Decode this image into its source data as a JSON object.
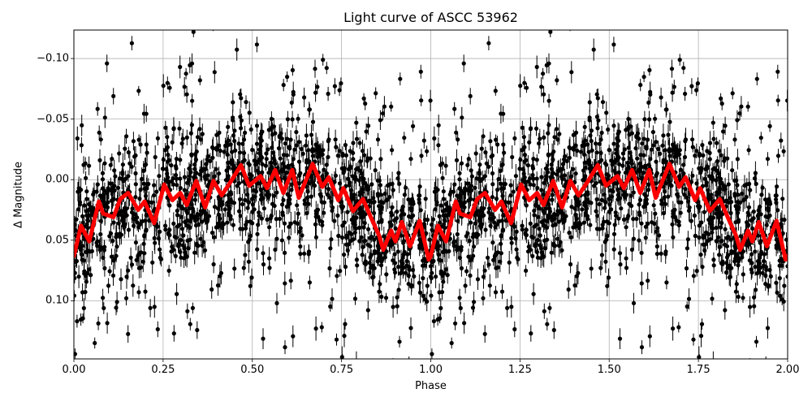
{
  "chart_data": {
    "type": "scatter",
    "title": "Light curve of ASCC 53962",
    "xlabel": "Phase",
    "ylabel": "Δ Magnitude",
    "xlim": [
      0.0,
      2.0
    ],
    "ylim": [
      0.148,
      -0.1235
    ],
    "y_inverted": true,
    "grid": true,
    "legend": null,
    "xticks": [
      "0.00",
      "0.25",
      "0.50",
      "0.75",
      "1.00",
      "1.25",
      "1.50",
      "1.75",
      "2.00"
    ],
    "yticks": [
      "−0.10",
      "−0.05",
      "0.00",
      "0.05",
      "0.10"
    ],
    "ytick_values": [
      -0.1,
      -0.05,
      0.0,
      0.05,
      0.1
    ],
    "xtick_values": [
      0.0,
      0.25,
      0.5,
      0.75,
      1.0,
      1.25,
      1.5,
      1.75,
      2.0
    ],
    "series": [
      {
        "name": "observations",
        "kind": "errorbar-scatter",
        "color": "#000000",
        "description": "Dense black points with vertical error bars, scatter spanning roughly -0.12 to +0.15 mag across phase 0-2, concentrated between -0.04 and +0.09",
        "scatter_center_approx": "follows model curve",
        "scatter_spread_mag": 0.06
      },
      {
        "name": "model",
        "kind": "line",
        "color": "#ff0000",
        "linewidth": 4,
        "period_in_phase": 1.0,
        "x": [
          0.0,
          0.02,
          0.043,
          0.07,
          0.082,
          0.111,
          0.13,
          0.152,
          0.18,
          0.198,
          0.225,
          0.253,
          0.276,
          0.298,
          0.316,
          0.343,
          0.368,
          0.391,
          0.414,
          0.441,
          0.468,
          0.491,
          0.523,
          0.541,
          0.564,
          0.587,
          0.612,
          0.63,
          0.669,
          0.696,
          0.714,
          0.741,
          0.755,
          0.782,
          0.81,
          0.832,
          0.855,
          0.867,
          0.889,
          0.901,
          0.919,
          0.942,
          0.969,
          0.994,
          1.0
        ],
        "y": [
          0.063,
          0.038,
          0.051,
          0.018,
          0.028,
          0.031,
          0.016,
          0.011,
          0.025,
          0.018,
          0.036,
          0.004,
          0.017,
          0.011,
          0.021,
          0.001,
          0.023,
          0.001,
          0.013,
          0.001,
          -0.012,
          0.005,
          -0.003,
          0.007,
          -0.008,
          0.011,
          -0.008,
          0.015,
          -0.013,
          0.006,
          -0.002,
          0.017,
          0.007,
          0.026,
          0.016,
          0.031,
          0.046,
          0.058,
          0.042,
          0.051,
          0.035,
          0.055,
          0.034,
          0.066,
          0.063
        ]
      }
    ]
  }
}
